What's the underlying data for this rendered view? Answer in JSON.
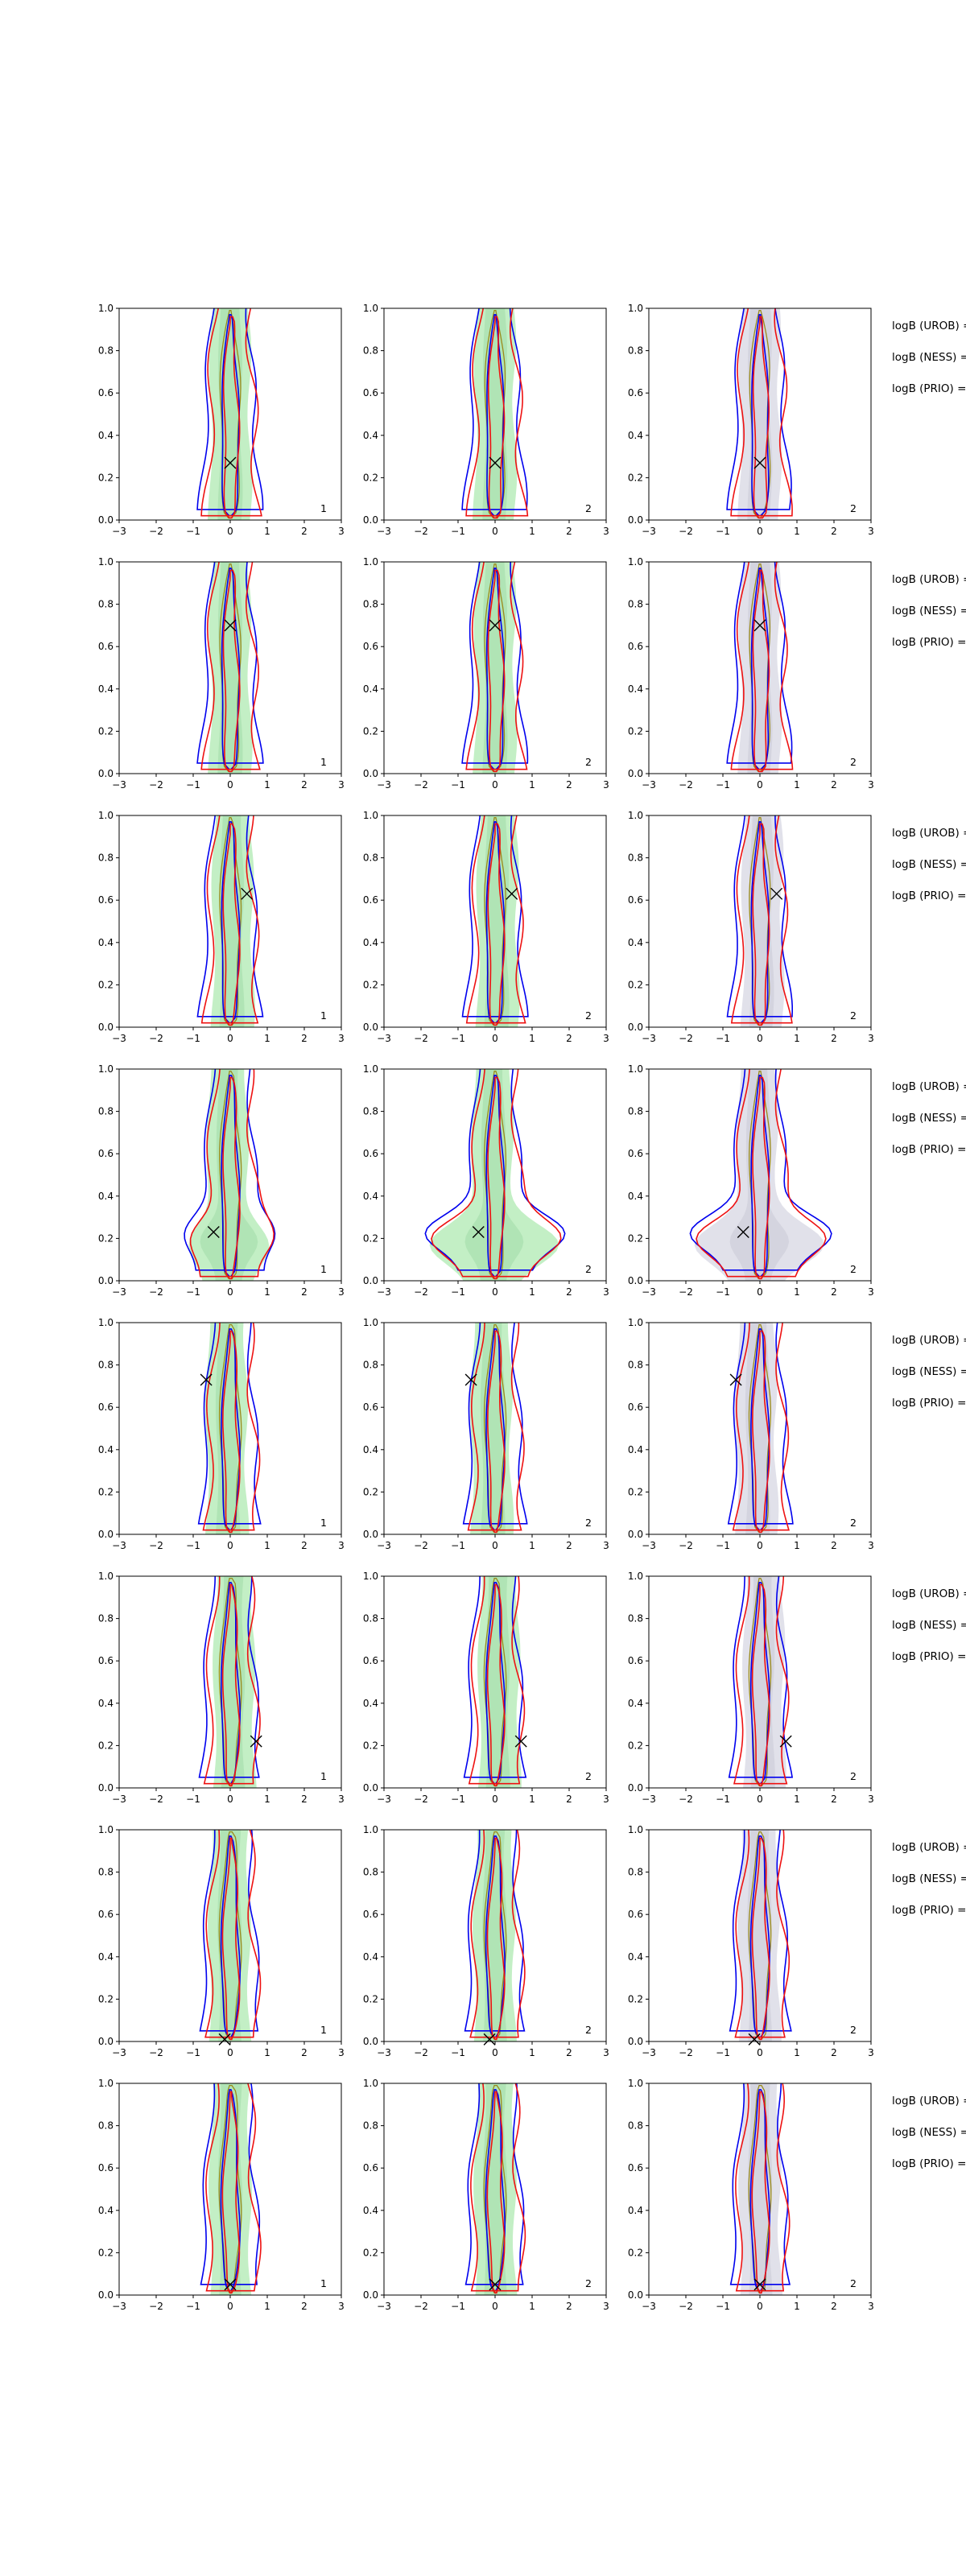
{
  "figure": {
    "x_ticks": [
      "−3",
      "−2",
      "−1",
      "0",
      "1",
      "2",
      "3"
    ],
    "y_ticks": [
      "0.0",
      "0.2",
      "0.4",
      "0.6",
      "0.8",
      "1.0"
    ],
    "side_labels": [
      "logB (UROB) =",
      "logB (NESS) =",
      "logB (PRIO) ="
    ],
    "column_fill_colors": [
      "#b9ecbb",
      "#b9ecbb",
      "#dcdce6"
    ],
    "column_tags": [
      "1",
      "2",
      "2"
    ],
    "line_colors": {
      "blue": "#0000ee",
      "red": "#ee1111",
      "olive": "#9a8a1a"
    }
  },
  "chart_data": {
    "type": "contour-grid",
    "rows": 8,
    "cols": 3,
    "xlim": [
      -3,
      3
    ],
    "ylim": [
      0,
      1
    ],
    "markers": [
      {
        "x": 0.0,
        "y": 0.27
      },
      {
        "x": 0.0,
        "y": 0.7
      },
      {
        "x": 0.45,
        "y": 0.63
      },
      {
        "x": -0.45,
        "y": 0.23
      },
      {
        "x": -0.65,
        "y": 0.73
      },
      {
        "x": 0.7,
        "y": 0.22
      },
      {
        "x": -0.15,
        "y": 0.01
      },
      {
        "x": 0.0,
        "y": 0.05
      }
    ]
  }
}
